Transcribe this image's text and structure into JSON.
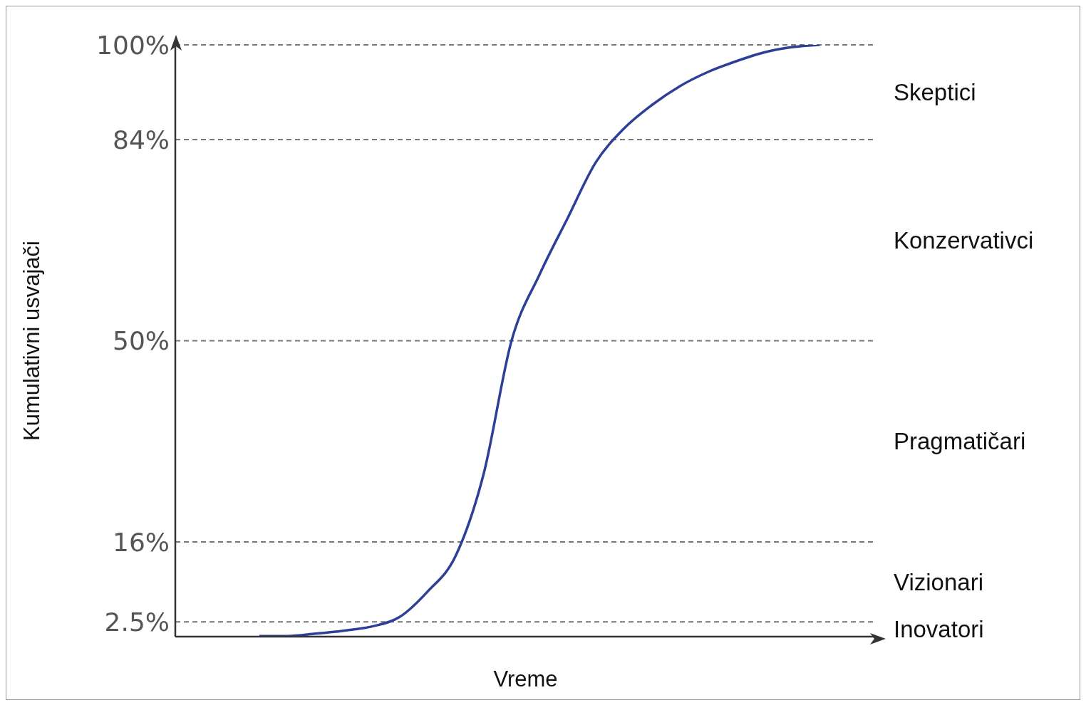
{
  "chart_data": {
    "type": "line",
    "xlabel": "Vreme",
    "ylabel": "Kumulativni usvajači",
    "categories": [
      null,
      null,
      null,
      null,
      null,
      null,
      null,
      null,
      null,
      null,
      null,
      null,
      null,
      null,
      null,
      null,
      null,
      null,
      null,
      null,
      null,
      null,
      null,
      null,
      null,
      null
    ],
    "series": [
      {
        "color": "#2e3f98",
        "values": [
          null,
          null,
          null,
          0.1,
          0.1,
          0.5,
          1.0,
          1.7,
          3.3,
          7.6,
          13.6,
          27.4,
          50,
          61.2,
          70.7,
          80.1,
          85.8,
          89.8,
          93.0,
          95.4,
          97.2,
          98.7,
          99.6,
          100,
          null,
          null
        ]
      }
    ],
    "ylim": [
      0,
      100
    ],
    "yticks": [
      {
        "value": 2.5,
        "label": "2.5%"
      },
      {
        "value": 16,
        "label": "16%"
      },
      {
        "value": 50,
        "label": "50%"
      },
      {
        "value": 84,
        "label": "84%"
      },
      {
        "value": 100,
        "label": "100%"
      }
    ],
    "grid": "y",
    "marker": "none",
    "line_style": "solid",
    "tick_labels": "y",
    "annotations": [
      "Skeptici",
      "Konzervativci",
      "Pragmatičari",
      "Vizionari",
      "Inovatori"
    ]
  }
}
